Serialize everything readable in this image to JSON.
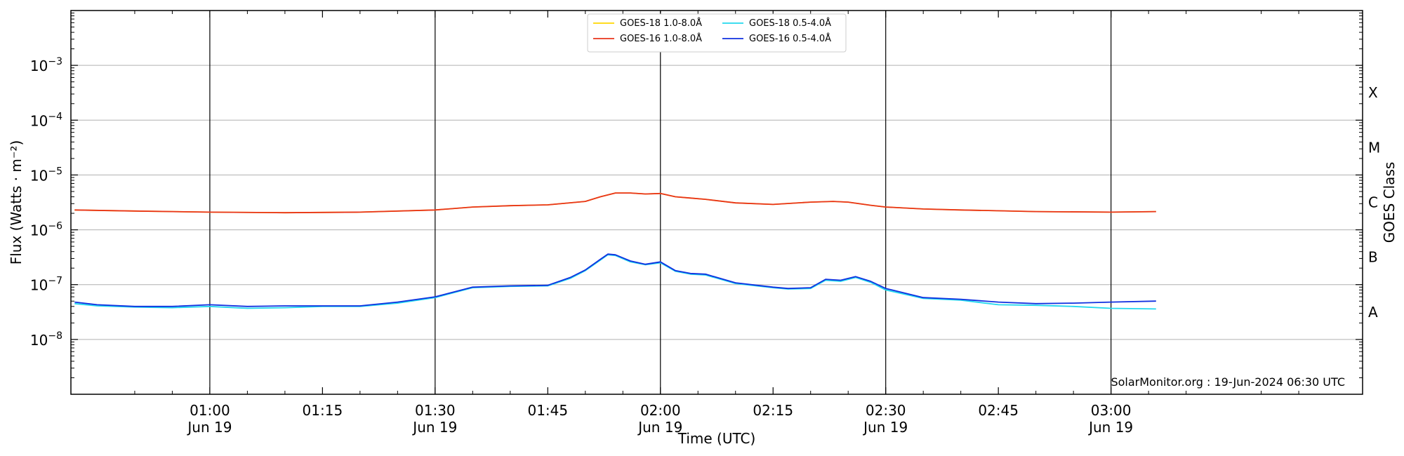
{
  "chart_data": {
    "type": "line",
    "title": "",
    "xlabel": "Time (UTC)",
    "ylabel": "Flux (Watts · m⁻²)",
    "ylabel_right": "GOES Class",
    "y_scale": "log",
    "xlim_minutes": [
      41.5,
      213.5
    ],
    "ylim": [
      1e-09,
      0.01
    ],
    "x_unit": "minutes after 2024-06-19 00:00 UTC",
    "x_ticks": [
      {
        "minute": 60,
        "time": "01:00",
        "date": "Jun 19"
      },
      {
        "minute": 75,
        "time": "01:15",
        "date": ""
      },
      {
        "minute": 90,
        "time": "01:30",
        "date": "Jun 19"
      },
      {
        "minute": 105,
        "time": "01:45",
        "date": ""
      },
      {
        "minute": 120,
        "time": "02:00",
        "date": "Jun 19"
      },
      {
        "minute": 135,
        "time": "02:15",
        "date": ""
      },
      {
        "minute": 150,
        "time": "02:30",
        "date": "Jun 19"
      },
      {
        "minute": 165,
        "time": "02:45",
        "date": ""
      },
      {
        "minute": 180,
        "time": "03:00",
        "date": "Jun 19"
      }
    ],
    "y_ticks": [
      {
        "value": 1e-08,
        "base": "10",
        "exp": "−8"
      },
      {
        "value": 1e-07,
        "base": "10",
        "exp": "−7"
      },
      {
        "value": 1e-06,
        "base": "10",
        "exp": "−6"
      },
      {
        "value": 1e-05,
        "base": "10",
        "exp": "−5"
      },
      {
        "value": 0.0001,
        "base": "10",
        "exp": "−4"
      },
      {
        "value": 0.001,
        "base": "10",
        "exp": "−3"
      }
    ],
    "goes_classes": [
      {
        "label": "A",
        "value": 3.16e-08
      },
      {
        "label": "B",
        "value": 3.16e-07
      },
      {
        "label": "C",
        "value": 3.16e-06
      },
      {
        "label": "M",
        "value": 3.16e-05
      },
      {
        "label": "X",
        "value": 0.000316
      }
    ],
    "day_lines_minutes": [
      60,
      90,
      120,
      150,
      180
    ],
    "grid": "horizontal at decades",
    "legend_placement": "top-center",
    "series": [
      {
        "name": "GOES-18 1.0-8.0Å",
        "color": "#ffd700",
        "x": [
          42,
          50,
          60,
          70,
          80,
          90,
          95,
          100,
          105,
          110,
          112,
          114,
          116,
          118,
          120,
          122,
          124,
          126,
          130,
          135,
          140,
          143,
          145,
          148,
          150,
          155,
          160,
          170,
          180,
          186
        ],
        "y": [
          2.3e-06,
          2.2e-06,
          2.1e-06,
          2.05e-06,
          2.1e-06,
          2.3e-06,
          2.6e-06,
          2.75e-06,
          2.85e-06,
          3.3e-06,
          4e-06,
          4.7e-06,
          4.7e-06,
          4.5e-06,
          4.6e-06,
          4e-06,
          3.8e-06,
          3.6e-06,
          3.1e-06,
          2.9e-06,
          3.2e-06,
          3.3e-06,
          3.2e-06,
          2.8e-06,
          2.6e-06,
          2.4e-06,
          2.3e-06,
          2.15e-06,
          2.1e-06,
          2.15e-06
        ]
      },
      {
        "name": "GOES-16 1.0-8.0Å",
        "color": "#e8341c",
        "x": [
          42,
          50,
          60,
          70,
          80,
          90,
          95,
          100,
          105,
          110,
          112,
          114,
          116,
          118,
          120,
          122,
          124,
          126,
          130,
          135,
          140,
          143,
          145,
          148,
          150,
          155,
          160,
          170,
          180,
          186
        ],
        "y": [
          2.3e-06,
          2.2e-06,
          2.1e-06,
          2.05e-06,
          2.1e-06,
          2.3e-06,
          2.6e-06,
          2.75e-06,
          2.85e-06,
          3.3e-06,
          4e-06,
          4.7e-06,
          4.7e-06,
          4.5e-06,
          4.6e-06,
          4e-06,
          3.8e-06,
          3.6e-06,
          3.1e-06,
          2.9e-06,
          3.2e-06,
          3.3e-06,
          3.2e-06,
          2.8e-06,
          2.6e-06,
          2.4e-06,
          2.3e-06,
          2.15e-06,
          2.1e-06,
          2.15e-06
        ]
      },
      {
        "name": "GOES-18 0.5-4.0Å",
        "color": "#22d8ee",
        "x": [
          42,
          45,
          50,
          55,
          60,
          65,
          70,
          75,
          80,
          85,
          90,
          95,
          100,
          105,
          108,
          110,
          112,
          113,
          114,
          116,
          118,
          120,
          122,
          124,
          126,
          130,
          135,
          137,
          140,
          142,
          144,
          146,
          148,
          150,
          155,
          160,
          165,
          170,
          175,
          180,
          186
        ],
        "y": [
          4.5e-08,
          4.1e-08,
          3.9e-08,
          3.8e-08,
          4e-08,
          3.7e-08,
          3.8e-08,
          4e-08,
          4e-08,
          4.6e-08,
          5.8e-08,
          8.8e-08,
          9.3e-08,
          9.5e-08,
          1.3e-07,
          1.8e-07,
          2.8e-07,
          3.5e-07,
          3.4e-07,
          2.6e-07,
          2.3e-07,
          2.5e-07,
          1.75e-07,
          1.55e-07,
          1.5e-07,
          1.05e-07,
          8.8e-08,
          8.3e-08,
          8.5e-08,
          1.2e-07,
          1.15e-07,
          1.35e-07,
          1.1e-07,
          8e-08,
          5.6e-08,
          5.2e-08,
          4.3e-08,
          4.2e-08,
          4e-08,
          3.7e-08,
          3.6e-08
        ]
      },
      {
        "name": "GOES-16 0.5-4.0Å",
        "color": "#1030e0",
        "x": [
          42,
          45,
          50,
          55,
          60,
          65,
          70,
          75,
          80,
          85,
          90,
          95,
          100,
          105,
          108,
          110,
          112,
          113,
          114,
          116,
          118,
          120,
          122,
          124,
          126,
          130,
          135,
          137,
          140,
          142,
          144,
          146,
          148,
          150,
          155,
          160,
          165,
          170,
          175,
          180,
          186
        ],
        "y": [
          4.8e-08,
          4.3e-08,
          4e-08,
          4e-08,
          4.3e-08,
          4e-08,
          4.1e-08,
          4.1e-08,
          4.1e-08,
          4.8e-08,
          6e-08,
          9e-08,
          9.5e-08,
          9.7e-08,
          1.35e-07,
          1.85e-07,
          2.9e-07,
          3.6e-07,
          3.5e-07,
          2.7e-07,
          2.35e-07,
          2.6e-07,
          1.8e-07,
          1.6e-07,
          1.55e-07,
          1.08e-07,
          9e-08,
          8.5e-08,
          8.8e-08,
          1.25e-07,
          1.2e-07,
          1.4e-07,
          1.15e-07,
          8.5e-08,
          5.8e-08,
          5.4e-08,
          4.8e-08,
          4.5e-08,
          4.6e-08,
          4.8e-08,
          5e-08
        ]
      }
    ],
    "watermark": "SolarMonitor.org : 19-Jun-2024 06:30 UTC"
  }
}
